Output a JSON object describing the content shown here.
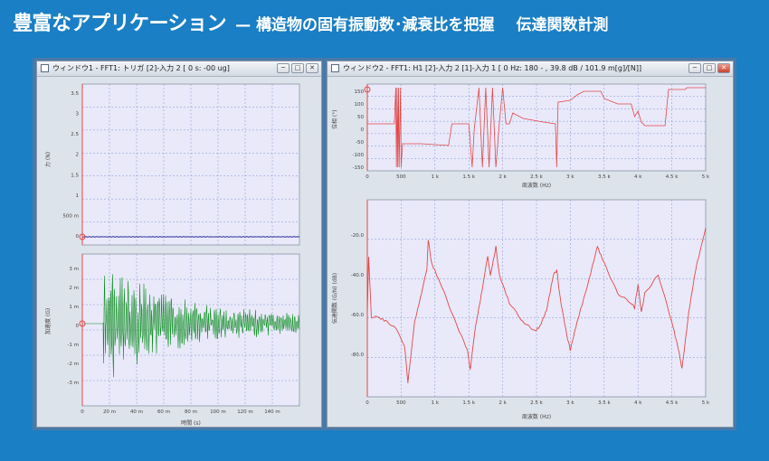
{
  "headline": {
    "main": "豊富なアプリケーション",
    "sub": "— 構造物の固有振動数･減衰比を把握",
    "sub2": "伝達関数計測"
  },
  "window1": {
    "title": "ウィンドウ1 - FFT1: トリガ [2]-入力 2 [ 0 s:  -00 ug]",
    "top_ylabel": "力 (N)",
    "top_yticks": [
      "3.5",
      "3",
      "2.5",
      "2",
      "1.5",
      "1",
      "500 m",
      "0"
    ],
    "bottom_ylabel": "加速度 (G)",
    "bottom_yticks": [
      "3 m",
      "2 m",
      "1 m",
      "0",
      "-1 m",
      "-2 m",
      "-3 m"
    ],
    "xticks": [
      "0",
      "20 m",
      "40 m",
      "60 m",
      "80 m",
      "100 m",
      "120 m",
      "140 m"
    ],
    "xlabel": "時間 (s)"
  },
  "window2": {
    "title": "ウィンドウ2 - FFT1: H1 [2]-入力 2 [1]-入力 1 [ 0 Hz:  180 - , 39.8 dB / 101.9 m[g]/[N]]",
    "top_ylabel": "位相 (°)",
    "top_yticks": [
      "150",
      "100",
      "50",
      "0",
      "-50",
      "-100",
      "-150"
    ],
    "bottom_ylabel": "伝達関数 (G/N) (dB)",
    "bottom_yticks": [
      "-20.0",
      "-40.0",
      "-60.0",
      "-80.0"
    ],
    "xticks": [
      "0",
      "500",
      "1 k",
      "1.5 k",
      "2 k",
      "2.5 k",
      "3 k",
      "3.5 k",
      "4 k",
      "4.5 k",
      "5 k"
    ],
    "xlabel": "周波数 (Hz)"
  },
  "controls": {
    "minimize": "─",
    "maximize": "□",
    "close": "✕"
  },
  "colors": {
    "force": "#2b2f9a",
    "accel": "#0a8c1e",
    "frf": "#e34848",
    "plotbg": "#e9e9fa",
    "grid": "#7f93c8"
  }
}
